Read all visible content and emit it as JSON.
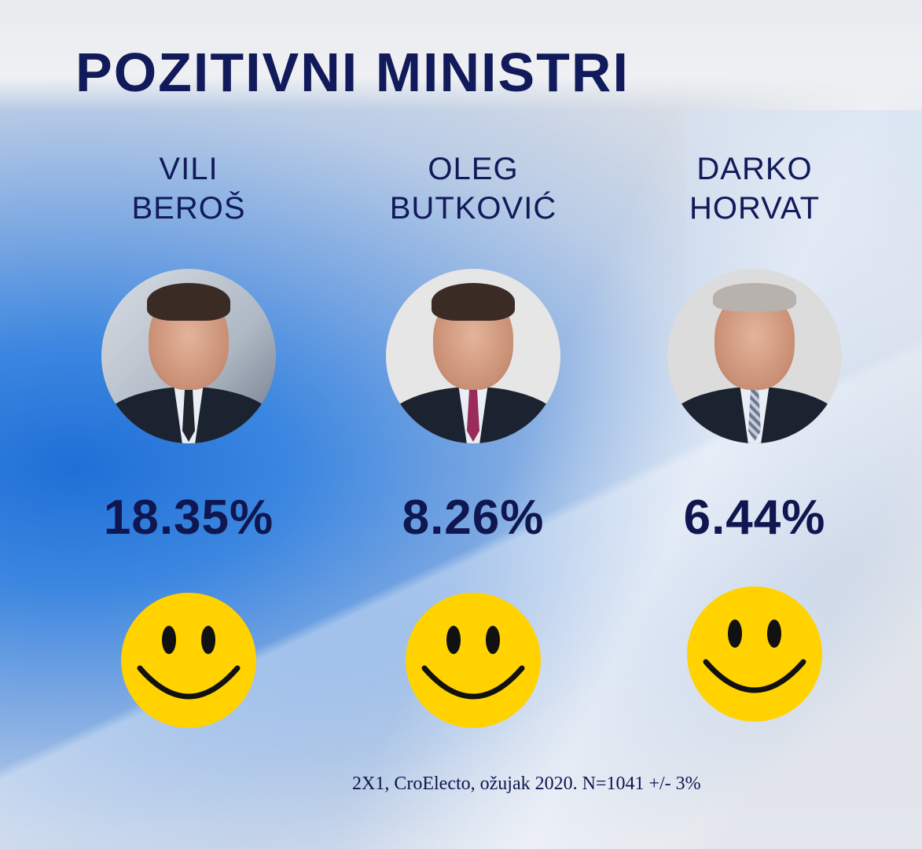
{
  "title": "POZITIVNI MINISTRI",
  "ministers": [
    {
      "first": "VILI",
      "last": "BEROŠ",
      "percent": "18.35%"
    },
    {
      "first": "OLEG",
      "last": "BUTKOVIĆ",
      "percent": "8.26%"
    },
    {
      "first": "DARKO",
      "last": "HORVAT",
      "percent": "6.44%"
    }
  ],
  "footer": "2X1, CroElecto, ožujak 2020. N=1041 +/- 3%",
  "colors": {
    "title": "#111a5a",
    "smiley": "#ffd200",
    "accent": "#1f6fd6"
  },
  "icons": {
    "face": "smiley-face-icon"
  }
}
